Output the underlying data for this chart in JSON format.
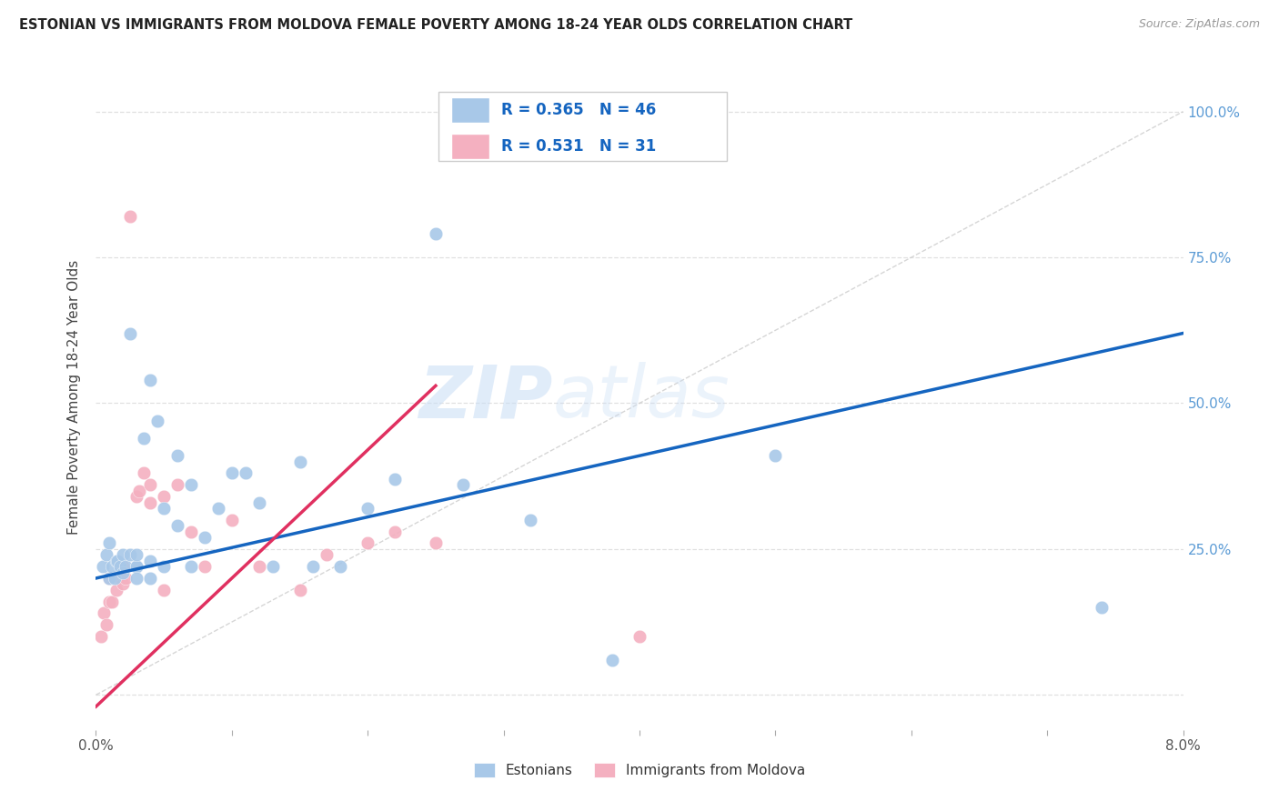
{
  "title": "ESTONIAN VS IMMIGRANTS FROM MOLDOVA FEMALE POVERTY AMONG 18-24 YEAR OLDS CORRELATION CHART",
  "source": "Source: ZipAtlas.com",
  "ylabel": "Female Poverty Among 18-24 Year Olds",
  "xlim": [
    0.0,
    0.08
  ],
  "ylim": [
    -0.06,
    1.08
  ],
  "ytick_pos": [
    0.0,
    0.25,
    0.5,
    0.75,
    1.0
  ],
  "ytick_labels": [
    "",
    "25.0%",
    "50.0%",
    "75.0%",
    "100.0%"
  ],
  "xtick_pos": [
    0.0,
    0.01,
    0.02,
    0.03,
    0.04,
    0.05,
    0.06,
    0.07,
    0.08
  ],
  "xtick_labels": [
    "0.0%",
    "",
    "",
    "",
    "",
    "",
    "",
    "",
    "8.0%"
  ],
  "r_estonian": 0.365,
  "n_estonian": 46,
  "r_moldova": 0.531,
  "n_moldova": 31,
  "estonian_color": "#a8c8e8",
  "moldova_color": "#f4b0c0",
  "trend_estonian_color": "#1565c0",
  "trend_moldova_color": "#e03060",
  "watermark_zip": "ZIP",
  "watermark_atlas": "atlas",
  "background_color": "#ffffff",
  "grid_color": "#e0e0e0",
  "estonian_x": [
    0.0005,
    0.0008,
    0.001,
    0.001,
    0.0012,
    0.0014,
    0.0015,
    0.0016,
    0.0018,
    0.002,
    0.002,
    0.0022,
    0.0025,
    0.0025,
    0.003,
    0.003,
    0.003,
    0.003,
    0.0035,
    0.004,
    0.004,
    0.004,
    0.0045,
    0.005,
    0.005,
    0.006,
    0.006,
    0.007,
    0.007,
    0.008,
    0.009,
    0.01,
    0.011,
    0.012,
    0.013,
    0.015,
    0.016,
    0.018,
    0.02,
    0.022,
    0.025,
    0.027,
    0.032,
    0.038,
    0.05,
    0.074
  ],
  "estonian_y": [
    0.22,
    0.24,
    0.2,
    0.26,
    0.22,
    0.2,
    0.23,
    0.23,
    0.22,
    0.21,
    0.24,
    0.22,
    0.24,
    0.62,
    0.22,
    0.22,
    0.24,
    0.2,
    0.44,
    0.23,
    0.54,
    0.2,
    0.47,
    0.32,
    0.22,
    0.41,
    0.29,
    0.36,
    0.22,
    0.27,
    0.32,
    0.38,
    0.38,
    0.33,
    0.22,
    0.4,
    0.22,
    0.22,
    0.32,
    0.37,
    0.79,
    0.36,
    0.3,
    0.06,
    0.41,
    0.15
  ],
  "moldova_x": [
    0.0004,
    0.0006,
    0.0008,
    0.001,
    0.001,
    0.0012,
    0.0015,
    0.0018,
    0.002,
    0.002,
    0.0022,
    0.0025,
    0.003,
    0.003,
    0.0032,
    0.0035,
    0.004,
    0.004,
    0.005,
    0.005,
    0.006,
    0.007,
    0.008,
    0.01,
    0.012,
    0.015,
    0.017,
    0.02,
    0.022,
    0.025,
    0.04
  ],
  "moldova_y": [
    0.1,
    0.14,
    0.12,
    0.16,
    0.2,
    0.16,
    0.18,
    0.2,
    0.19,
    0.22,
    0.2,
    0.82,
    0.34,
    0.22,
    0.35,
    0.38,
    0.33,
    0.36,
    0.18,
    0.34,
    0.36,
    0.28,
    0.22,
    0.3,
    0.22,
    0.18,
    0.24,
    0.26,
    0.28,
    0.26,
    0.1
  ],
  "marker_size": 110,
  "trend_est_x0": 0.0,
  "trend_est_x1": 0.08,
  "trend_est_y0": 0.2,
  "trend_est_y1": 0.62,
  "trend_mol_x0": 0.0,
  "trend_mol_x1": 0.025,
  "trend_mol_y0": -0.02,
  "trend_mol_y1": 0.53
}
